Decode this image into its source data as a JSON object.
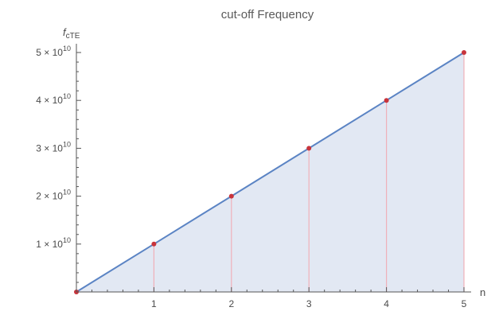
{
  "chart_data": {
    "type": "area",
    "title": "cut-off Frequency",
    "xlabel": "n",
    "ylabel": "f",
    "ylabel_subscript": "cTE",
    "x": [
      0,
      1,
      2,
      3,
      4,
      5
    ],
    "series": [
      {
        "values": [
          0,
          10000000000,
          20000000000,
          30000000000,
          40000000000,
          50000000000
        ]
      }
    ],
    "xlim": [
      0,
      5
    ],
    "ylim": [
      0,
      50000000000
    ],
    "x_ticks": [
      "1",
      "2",
      "3",
      "4",
      "5"
    ],
    "y_ticks": [
      {
        "mantissa": "1",
        "times": "×",
        "base": "10",
        "exponent": "10",
        "value": 10000000000
      },
      {
        "mantissa": "2",
        "times": "×",
        "base": "10",
        "exponent": "10",
        "value": 20000000000
      },
      {
        "mantissa": "3",
        "times": "×",
        "base": "10",
        "exponent": "10",
        "value": 30000000000
      },
      {
        "mantissa": "4",
        "times": "×",
        "base": "10",
        "exponent": "10",
        "value": 40000000000
      },
      {
        "mantissa": "5",
        "times": "×",
        "base": "10",
        "exponent": "10",
        "value": 50000000000
      }
    ],
    "grid": false,
    "colors": {
      "line": "#5b84c4",
      "fill": "#dfe6f2",
      "points": "#c8343c",
      "droplines": "#f0b0b8",
      "axis": "#555555"
    }
  }
}
